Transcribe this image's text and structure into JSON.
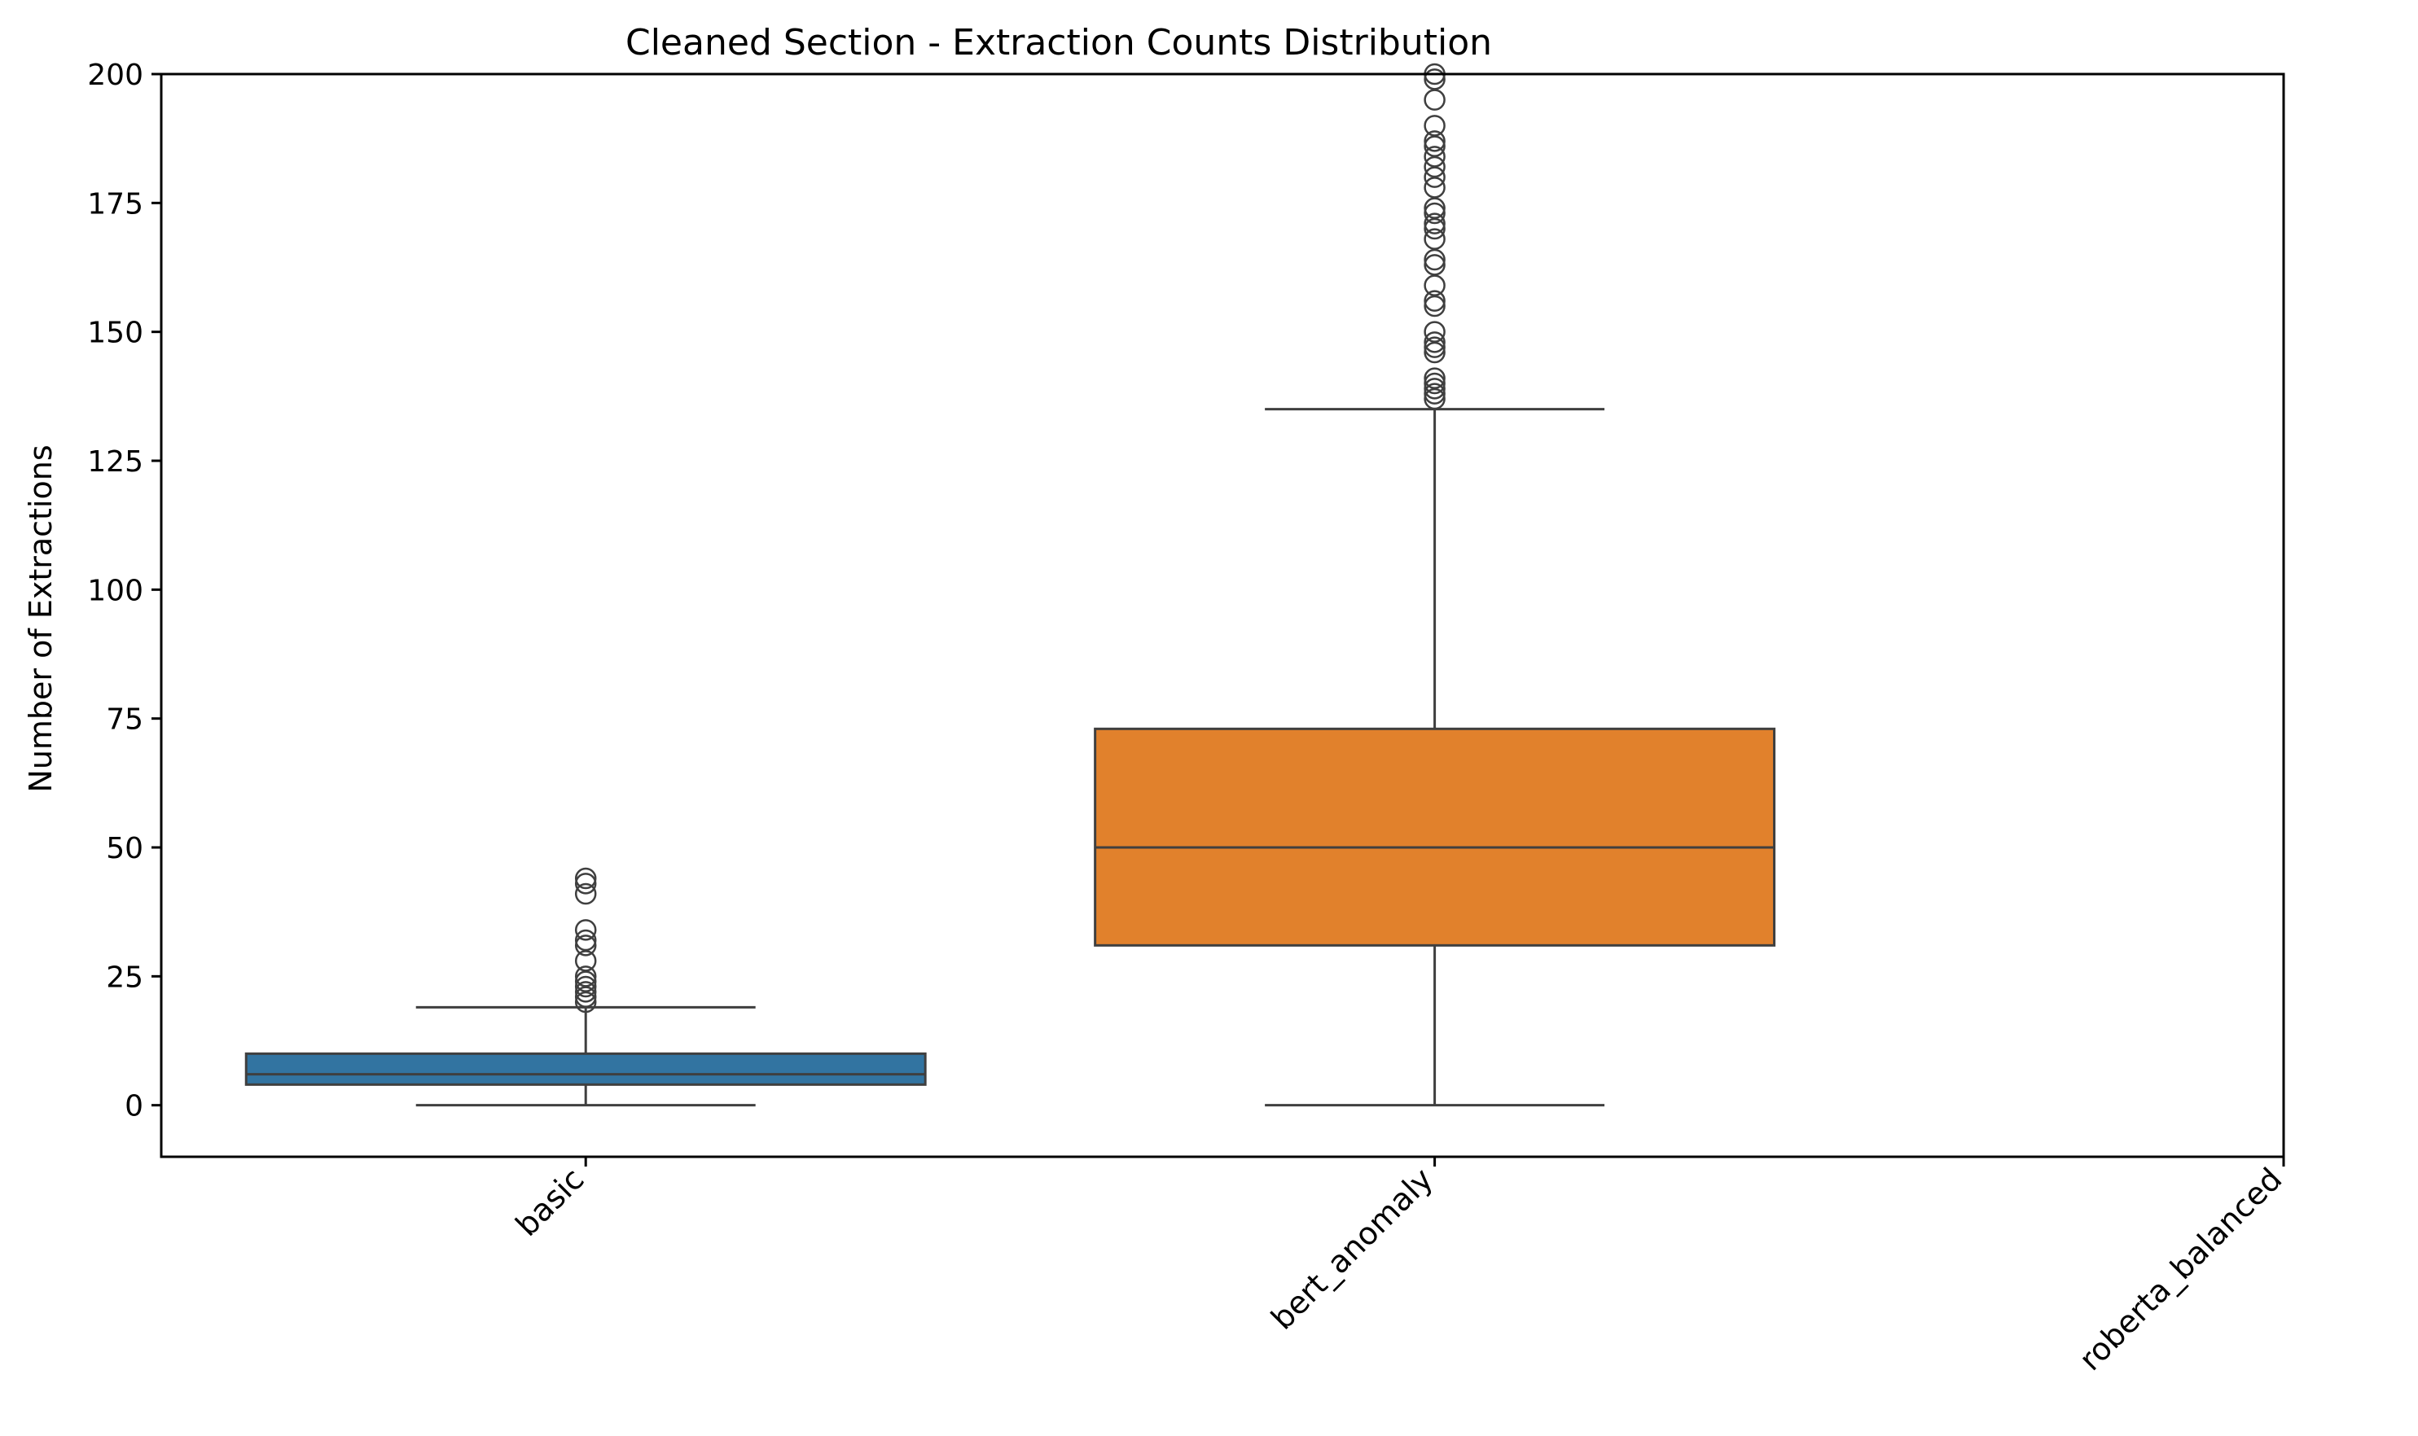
{
  "chart_data": {
    "type": "boxplot",
    "title": "Cleaned Section - Extraction Counts Distribution",
    "xlabel": "",
    "ylabel": "Number of Extractions",
    "ylim": [
      -10,
      200
    ],
    "yticks": [
      0,
      25,
      50,
      75,
      100,
      125,
      150,
      175,
      200
    ],
    "grid": false,
    "legend": "none",
    "categories": [
      "basic",
      "bert_anomaly",
      "roberta_balanced"
    ],
    "boxes": [
      {
        "category": "basic",
        "color": "#3274a1",
        "whisker_low": 0,
        "q1": 4,
        "median": 6,
        "q3": 10,
        "whisker_high": 19,
        "outliers": [
          20,
          21,
          22,
          23,
          24,
          25,
          28,
          31,
          32,
          34,
          41,
          43,
          44
        ]
      },
      {
        "category": "bert_anomaly",
        "color": "#e1812c",
        "whisker_low": 0,
        "q1": 31,
        "median": 50,
        "q3": 73,
        "whisker_high": 135,
        "outliers": [
          137,
          138,
          139,
          140,
          141,
          146,
          147,
          148,
          150,
          155,
          156,
          159,
          163,
          164,
          168,
          170,
          171,
          173,
          174,
          178,
          180,
          182,
          184,
          186,
          187,
          190,
          195,
          199,
          200
        ]
      },
      {
        "category": "roberta_balanced",
        "color": "#3a923a",
        "empty": true
      }
    ]
  }
}
